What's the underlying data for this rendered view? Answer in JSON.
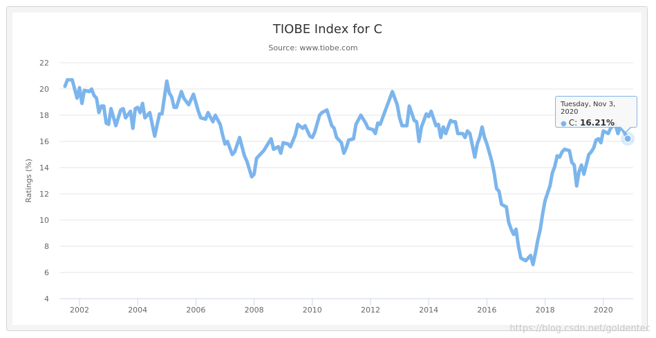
{
  "chart_data": {
    "type": "line",
    "title": "TIOBE Index for C",
    "subtitle": "Source: www.tiobe.com",
    "xlabel": "",
    "ylabel": "Ratings (%)",
    "ylim": [
      4,
      22
    ],
    "yticks": [
      "4",
      "6",
      "8",
      "10",
      "12",
      "14",
      "16",
      "18",
      "20",
      "22"
    ],
    "xticks": [
      "2002",
      "2004",
      "2006",
      "2008",
      "2010",
      "2012",
      "2014",
      "2016",
      "2018",
      "2020"
    ],
    "grid": true,
    "line_color": "#7cb5ec",
    "series": [
      {
        "name": "C",
        "points": [
          [
            "2001-07",
            20.2
          ],
          [
            "2001-08",
            20.7
          ],
          [
            "2001-10",
            20.7
          ],
          [
            "2001-12",
            19.3
          ],
          [
            "2002-01",
            20.1
          ],
          [
            "2002-02",
            18.9
          ],
          [
            "2002-03",
            19.9
          ],
          [
            "2002-05",
            19.8
          ],
          [
            "2002-06",
            20.0
          ],
          [
            "2002-07",
            19.5
          ],
          [
            "2002-08",
            19.3
          ],
          [
            "2002-09",
            18.2
          ],
          [
            "2002-10",
            18.7
          ],
          [
            "2002-11",
            18.7
          ],
          [
            "2002-12",
            17.4
          ],
          [
            "2003-01",
            17.3
          ],
          [
            "2003-02",
            18.5
          ],
          [
            "2003-04",
            17.2
          ],
          [
            "2003-06",
            18.4
          ],
          [
            "2003-07",
            18.5
          ],
          [
            "2003-08",
            17.8
          ],
          [
            "2003-10",
            18.3
          ],
          [
            "2003-11",
            17.0
          ],
          [
            "2003-12",
            18.5
          ],
          [
            "2004-01",
            18.6
          ],
          [
            "2004-02",
            18.2
          ],
          [
            "2004-03",
            18.9
          ],
          [
            "2004-04",
            17.8
          ],
          [
            "2004-06",
            18.2
          ],
          [
            "2004-08",
            16.4
          ],
          [
            "2004-10",
            18.1
          ],
          [
            "2004-11",
            18.1
          ],
          [
            "2005-01",
            20.6
          ],
          [
            "2005-02",
            19.7
          ],
          [
            "2005-03",
            19.4
          ],
          [
            "2005-04",
            18.6
          ],
          [
            "2005-05",
            18.6
          ],
          [
            "2005-07",
            19.8
          ],
          [
            "2005-08",
            19.3
          ],
          [
            "2005-10",
            18.8
          ],
          [
            "2005-12",
            19.6
          ],
          [
            "2006-02",
            18.3
          ],
          [
            "2006-03",
            17.8
          ],
          [
            "2006-05",
            17.7
          ],
          [
            "2006-06",
            18.2
          ],
          [
            "2006-08",
            17.5
          ],
          [
            "2006-09",
            18.0
          ],
          [
            "2006-11",
            17.3
          ],
          [
            "2006-12",
            16.5
          ],
          [
            "2007-01",
            15.8
          ],
          [
            "2007-02",
            16.0
          ],
          [
            "2007-04",
            15.0
          ],
          [
            "2007-05",
            15.2
          ],
          [
            "2007-07",
            16.3
          ],
          [
            "2007-09",
            14.9
          ],
          [
            "2007-10",
            14.5
          ],
          [
            "2007-12",
            13.3
          ],
          [
            "2008-01",
            13.5
          ],
          [
            "2008-02",
            14.7
          ],
          [
            "2008-05",
            15.3
          ],
          [
            "2008-06",
            15.6
          ],
          [
            "2008-08",
            16.2
          ],
          [
            "2008-09",
            15.4
          ],
          [
            "2008-11",
            15.6
          ],
          [
            "2008-12",
            15.1
          ],
          [
            "2009-01",
            15.9
          ],
          [
            "2009-03",
            15.8
          ],
          [
            "2009-04",
            15.6
          ],
          [
            "2009-06",
            16.5
          ],
          [
            "2009-07",
            17.3
          ],
          [
            "2009-09",
            17.0
          ],
          [
            "2009-10",
            17.2
          ],
          [
            "2009-12",
            16.4
          ],
          [
            "2010-01",
            16.3
          ],
          [
            "2010-02",
            16.7
          ],
          [
            "2010-04",
            18.0
          ],
          [
            "2010-05",
            18.2
          ],
          [
            "2010-07",
            18.4
          ],
          [
            "2010-09",
            17.2
          ],
          [
            "2010-10",
            17.0
          ],
          [
            "2010-11",
            16.3
          ],
          [
            "2011-01",
            15.9
          ],
          [
            "2011-02",
            15.1
          ],
          [
            "2011-03",
            15.5
          ],
          [
            "2011-04",
            16.1
          ],
          [
            "2011-06",
            16.2
          ],
          [
            "2011-07",
            17.3
          ],
          [
            "2011-09",
            18.0
          ],
          [
            "2011-11",
            17.4
          ],
          [
            "2011-12",
            17.0
          ],
          [
            "2012-02",
            16.9
          ],
          [
            "2012-03",
            16.6
          ],
          [
            "2012-04",
            17.4
          ],
          [
            "2012-05",
            17.3
          ],
          [
            "2012-07",
            18.3
          ],
          [
            "2012-08",
            18.8
          ],
          [
            "2012-10",
            19.8
          ],
          [
            "2012-12",
            18.8
          ],
          [
            "2013-01",
            17.8
          ],
          [
            "2013-02",
            17.2
          ],
          [
            "2013-04",
            17.2
          ],
          [
            "2013-05",
            18.7
          ],
          [
            "2013-07",
            17.6
          ],
          [
            "2013-08",
            17.5
          ],
          [
            "2013-09",
            16.0
          ],
          [
            "2013-10",
            17.1
          ],
          [
            "2013-12",
            18.1
          ],
          [
            "2014-01",
            17.9
          ],
          [
            "2014-02",
            18.3
          ],
          [
            "2014-04",
            17.2
          ],
          [
            "2014-05",
            17.3
          ],
          [
            "2014-06",
            16.3
          ],
          [
            "2014-07",
            17.1
          ],
          [
            "2014-08",
            16.6
          ],
          [
            "2014-10",
            17.6
          ],
          [
            "2014-11",
            17.5
          ],
          [
            "2014-12",
            17.5
          ],
          [
            "2015-01",
            16.6
          ],
          [
            "2015-03",
            16.6
          ],
          [
            "2015-04",
            16.3
          ],
          [
            "2015-05",
            16.8
          ],
          [
            "2015-06",
            16.6
          ],
          [
            "2015-08",
            14.8
          ],
          [
            "2015-09",
            15.8
          ],
          [
            "2015-10",
            16.3
          ],
          [
            "2015-11",
            17.1
          ],
          [
            "2015-12",
            16.3
          ],
          [
            "2016-01",
            15.8
          ],
          [
            "2016-03",
            14.5
          ],
          [
            "2016-04",
            13.6
          ],
          [
            "2016-05",
            12.4
          ],
          [
            "2016-06",
            12.2
          ],
          [
            "2016-07",
            11.2
          ],
          [
            "2016-09",
            11.0
          ],
          [
            "2016-10",
            9.8
          ],
          [
            "2016-11",
            9.3
          ],
          [
            "2016-12",
            8.9
          ],
          [
            "2017-01",
            9.3
          ],
          [
            "2017-02",
            8.0
          ],
          [
            "2017-03",
            7.1
          ],
          [
            "2017-04",
            7.0
          ],
          [
            "2017-05",
            6.9
          ],
          [
            "2017-07",
            7.3
          ],
          [
            "2017-08",
            6.6
          ],
          [
            "2017-09",
            7.5
          ],
          [
            "2017-10",
            8.5
          ],
          [
            "2017-11",
            9.3
          ],
          [
            "2017-12",
            10.5
          ],
          [
            "2018-01",
            11.5
          ],
          [
            "2018-03",
            12.6
          ],
          [
            "2018-04",
            13.6
          ],
          [
            "2018-05",
            14.1
          ],
          [
            "2018-06",
            14.9
          ],
          [
            "2018-07",
            14.8
          ],
          [
            "2018-08",
            15.2
          ],
          [
            "2018-09",
            15.4
          ],
          [
            "2018-11",
            15.3
          ],
          [
            "2018-12",
            14.4
          ],
          [
            "2019-01",
            14.2
          ],
          [
            "2019-02",
            12.6
          ],
          [
            "2019-03",
            13.7
          ],
          [
            "2019-04",
            14.2
          ],
          [
            "2019-05",
            13.5
          ],
          [
            "2019-07",
            15.0
          ],
          [
            "2019-08",
            15.2
          ],
          [
            "2019-09",
            15.5
          ],
          [
            "2019-10",
            16.1
          ],
          [
            "2019-11",
            16.2
          ],
          [
            "2019-12",
            15.9
          ],
          [
            "2020-01",
            16.8
          ],
          [
            "2020-03",
            16.6
          ],
          [
            "2020-04",
            17.0
          ],
          [
            "2020-05",
            17.2
          ],
          [
            "2020-06",
            17.3
          ],
          [
            "2020-07",
            16.6
          ],
          [
            "2020-08",
            17.1
          ],
          [
            "2020-09",
            16.9
          ],
          [
            "2020-11-03",
            16.21
          ]
        ]
      }
    ],
    "tooltip": {
      "date": "Tuesday, Nov 3, 2020",
      "series_label": "C: ",
      "value": "16.21%"
    }
  },
  "watermark": "https://blog.csdn.net/goldentec"
}
